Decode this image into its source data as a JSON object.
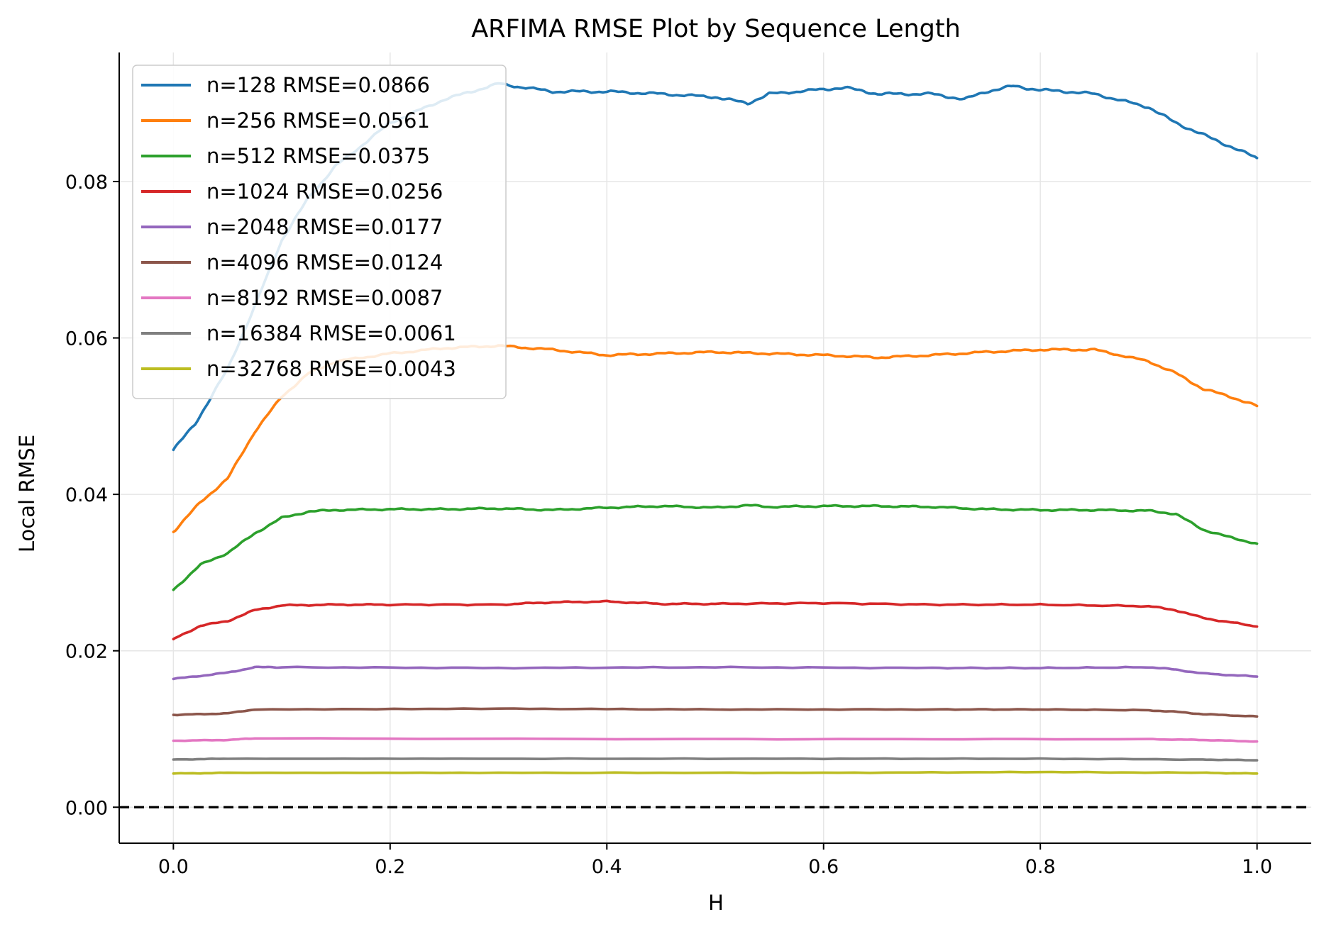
{
  "chart_data": {
    "type": "line",
    "title": "ARFIMA RMSE Plot by Sequence Length",
    "xlabel": "H",
    "ylabel": "Local RMSE",
    "xlim": [
      -0.05,
      1.05
    ],
    "ylim": [
      -0.0046,
      0.0965
    ],
    "xticks": [
      0.0,
      0.2,
      0.4,
      0.6,
      0.8,
      1.0
    ],
    "xtick_labels": [
      "0.0",
      "0.2",
      "0.4",
      "0.6",
      "0.8",
      "1.0"
    ],
    "yticks": [
      0.0,
      0.02,
      0.04,
      0.06,
      0.08
    ],
    "ytick_labels": [
      "0.00",
      "0.02",
      "0.04",
      "0.06",
      "0.08"
    ],
    "grid": true,
    "legend_position": "upper-left",
    "reference_line": {
      "y": 0.0,
      "style": "dashed",
      "color": "#000000"
    },
    "series": [
      {
        "name": "n=128 RMSE=0.0866",
        "color": "#1f77b4",
        "x": [
          0.0,
          0.02,
          0.05,
          0.075,
          0.1,
          0.125,
          0.15,
          0.2,
          0.25,
          0.3,
          0.35,
          0.4,
          0.45,
          0.5,
          0.53,
          0.55,
          0.6,
          0.62,
          0.65,
          0.7,
          0.73,
          0.75,
          0.775,
          0.8,
          0.825,
          0.85,
          0.9,
          0.925,
          0.95,
          0.975,
          1.0
        ],
        "y": [
          0.0457,
          0.049,
          0.056,
          0.064,
          0.0725,
          0.078,
          0.082,
          0.0875,
          0.0905,
          0.0925,
          0.0915,
          0.0915,
          0.0912,
          0.0908,
          0.09,
          0.0912,
          0.0918,
          0.092,
          0.0912,
          0.0912,
          0.0905,
          0.0915,
          0.0922,
          0.0917,
          0.0915,
          0.0912,
          0.0895,
          0.0875,
          0.086,
          0.0845,
          0.083
        ]
      },
      {
        "name": "n=256 RMSE=0.0561",
        "color": "#ff7f0e",
        "x": [
          0.0,
          0.025,
          0.05,
          0.075,
          0.1,
          0.125,
          0.15,
          0.2,
          0.25,
          0.3,
          0.35,
          0.4,
          0.45,
          0.5,
          0.55,
          0.6,
          0.65,
          0.7,
          0.75,
          0.8,
          0.85,
          0.9,
          0.925,
          0.95,
          0.975,
          1.0
        ],
        "y": [
          0.0352,
          0.039,
          0.042,
          0.048,
          0.0525,
          0.0555,
          0.057,
          0.058,
          0.0587,
          0.059,
          0.0585,
          0.0578,
          0.058,
          0.0582,
          0.058,
          0.0578,
          0.0575,
          0.0578,
          0.0582,
          0.0585,
          0.0585,
          0.057,
          0.0555,
          0.0535,
          0.0525,
          0.0513
        ]
      },
      {
        "name": "n=512 RMSE=0.0375",
        "color": "#2ca02c",
        "x": [
          0.0,
          0.025,
          0.05,
          0.075,
          0.1,
          0.125,
          0.15,
          0.2,
          0.25,
          0.3,
          0.35,
          0.4,
          0.45,
          0.5,
          0.53,
          0.55,
          0.6,
          0.65,
          0.7,
          0.75,
          0.8,
          0.85,
          0.9,
          0.925,
          0.95,
          0.975,
          1.0
        ],
        "y": [
          0.0278,
          0.031,
          0.0325,
          0.035,
          0.037,
          0.0378,
          0.038,
          0.0381,
          0.0381,
          0.0382,
          0.038,
          0.0383,
          0.0385,
          0.0383,
          0.0386,
          0.0384,
          0.0385,
          0.0385,
          0.0384,
          0.0381,
          0.038,
          0.038,
          0.0379,
          0.0375,
          0.0355,
          0.0345,
          0.0337
        ]
      },
      {
        "name": "n=1024 RMSE=0.0256",
        "color": "#d62728",
        "x": [
          0.0,
          0.025,
          0.05,
          0.075,
          0.1,
          0.15,
          0.2,
          0.3,
          0.35,
          0.4,
          0.45,
          0.5,
          0.6,
          0.7,
          0.8,
          0.9,
          0.925,
          0.95,
          1.0
        ],
        "y": [
          0.0215,
          0.0232,
          0.0238,
          0.0252,
          0.0258,
          0.0259,
          0.0259,
          0.0259,
          0.0262,
          0.0263,
          0.026,
          0.026,
          0.0261,
          0.0259,
          0.0259,
          0.0257,
          0.0252,
          0.0242,
          0.0231
        ]
      },
      {
        "name": "n=2048 RMSE=0.0177",
        "color": "#9467bd",
        "x": [
          0.0,
          0.05,
          0.075,
          0.1,
          0.3,
          0.5,
          0.7,
          0.8,
          0.9,
          0.925,
          0.95,
          1.0
        ],
        "y": [
          0.0164,
          0.0172,
          0.0179,
          0.0179,
          0.0178,
          0.0179,
          0.0178,
          0.0178,
          0.0179,
          0.0176,
          0.0171,
          0.0167
        ]
      },
      {
        "name": "n=4096 RMSE=0.0124",
        "color": "#8c564b",
        "x": [
          0.0,
          0.05,
          0.075,
          0.3,
          0.5,
          0.7,
          0.8,
          0.9,
          0.925,
          0.95,
          1.0
        ],
        "y": [
          0.0118,
          0.012,
          0.0125,
          0.0126,
          0.0125,
          0.0125,
          0.0125,
          0.0124,
          0.0122,
          0.0119,
          0.0116
        ]
      },
      {
        "name": "n=8192 RMSE=0.0087",
        "color": "#e377c2",
        "x": [
          0.0,
          0.05,
          0.075,
          0.5,
          0.9,
          0.95,
          1.0
        ],
        "y": [
          0.0085,
          0.0086,
          0.0088,
          0.0087,
          0.0087,
          0.0086,
          0.0084
        ]
      },
      {
        "name": "n=16384 RMSE=0.0061",
        "color": "#7f7f7f",
        "x": [
          0.0,
          0.05,
          0.3,
          0.6,
          0.8,
          0.95,
          1.0
        ],
        "y": [
          0.0061,
          0.0062,
          0.0062,
          0.0062,
          0.0062,
          0.0061,
          0.006
        ]
      },
      {
        "name": "n=32768 RMSE=0.0043",
        "color": "#bcbd22",
        "x": [
          0.0,
          0.05,
          0.3,
          0.6,
          0.8,
          0.95,
          1.0
        ],
        "y": [
          0.0043,
          0.0044,
          0.0044,
          0.0044,
          0.0045,
          0.0044,
          0.0043
        ]
      }
    ]
  }
}
